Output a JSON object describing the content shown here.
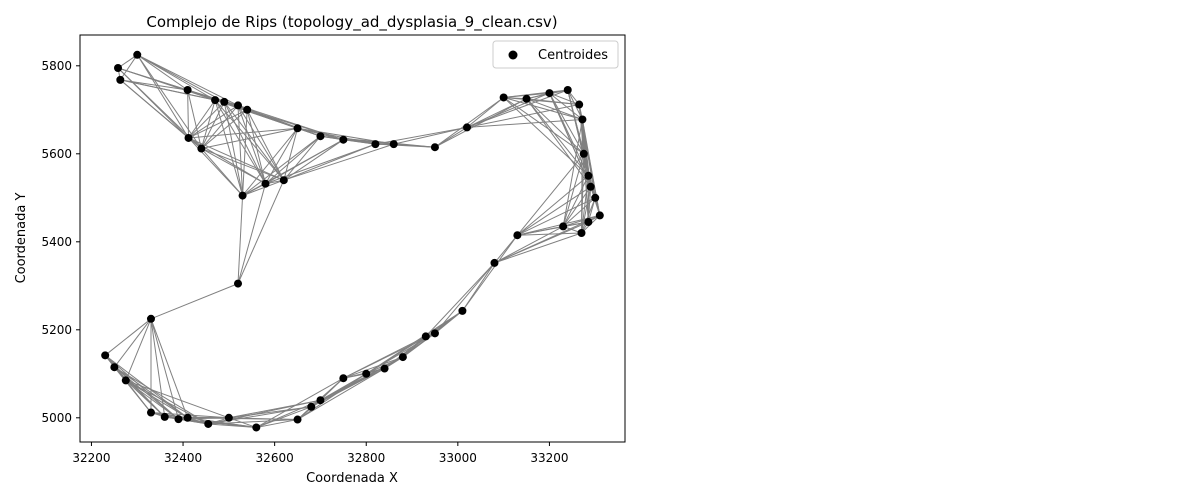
{
  "chart_data": {
    "type": "scatter",
    "title": "Complejo de Rips (topology_ad_dysplasia_9_clean.csv)",
    "xlabel": "Coordenada X",
    "ylabel": "Coordenada Y",
    "xlim": [
      32175,
      33365
    ],
    "ylim": [
      4945,
      5870
    ],
    "xticks": [
      32200,
      32400,
      32600,
      32800,
      33000,
      33200
    ],
    "yticks": [
      5000,
      5200,
      5400,
      5600,
      5800
    ],
    "xtick_labels": [
      "32200",
      "32400",
      "32600",
      "32800",
      "33000",
      "33200"
    ],
    "ytick_labels": [
      "5000",
      "5200",
      "5400",
      "5600",
      "5800"
    ],
    "legend": {
      "placement": "top-right",
      "entries": [
        "Centroides"
      ]
    },
    "grid": false,
    "colors": {
      "points": "#000000",
      "edges": "#808080"
    },
    "series": [
      {
        "name": "Centroides",
        "x": [
          32300,
          32258,
          32263,
          32410,
          32470,
          32490,
          32520,
          32540,
          32412,
          32440,
          32650,
          32700,
          32750,
          32820,
          32860,
          32950,
          33020,
          33100,
          33150,
          33200,
          33240,
          33265,
          33272,
          33275,
          33285,
          33290,
          33300,
          33310,
          33285,
          33270,
          33230,
          33130,
          33080,
          33010,
          32950,
          32930,
          32880,
          32840,
          32800,
          32750,
          32700,
          32680,
          32650,
          32560,
          32500,
          32455,
          32410,
          32390,
          32360,
          32330,
          32275,
          32250,
          32230,
          32330,
          32520,
          32530,
          32580,
          32620
        ],
        "y": [
          5825,
          5795,
          5768,
          5745,
          5722,
          5718,
          5710,
          5700,
          5636,
          5612,
          5658,
          5640,
          5632,
          5622,
          5622,
          5615,
          5660,
          5728,
          5725,
          5738,
          5745,
          5712,
          5678,
          5600,
          5550,
          5525,
          5500,
          5460,
          5445,
          5420,
          5435,
          5415,
          5352,
          5243,
          5192,
          5185,
          5138,
          5112,
          5100,
          5090,
          5040,
          5025,
          4996,
          4978,
          5000,
          4986,
          5000,
          4997,
          5002,
          5012,
          5085,
          5115,
          5142,
          5225,
          5305,
          5505,
          5532,
          5540
        ]
      }
    ]
  }
}
